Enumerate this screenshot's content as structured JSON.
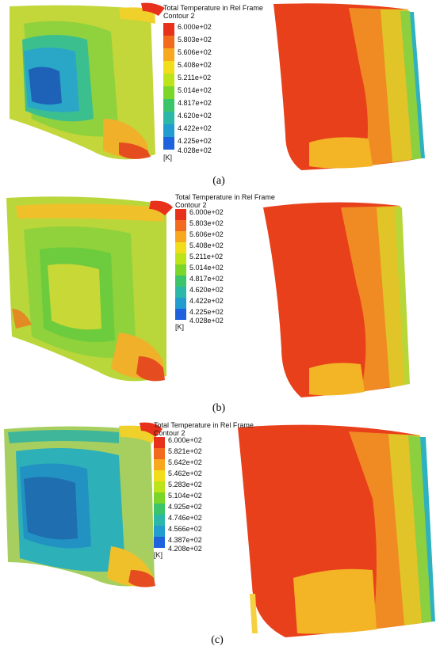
{
  "panels": [
    {
      "caption": "(a)",
      "legend_title": "Total Temperature in Rel Frame",
      "legend_subtitle": "Contour 2",
      "unit": "[K]",
      "levels": [
        "6.000e+02",
        "5.803e+02",
        "5.606e+02",
        "5.408e+02",
        "5.211e+02",
        "5.014e+02",
        "4.817e+02",
        "4.620e+02",
        "4.422e+02",
        "4.225e+02",
        "4.028e+02"
      ]
    },
    {
      "caption": "(b)",
      "legend_title": "Total Temperature in Rel Frame",
      "legend_subtitle": "Contour 2",
      "unit": "[K]",
      "levels": [
        "6.000e+02",
        "5.803e+02",
        "5.606e+02",
        "5.408e+02",
        "5.211e+02",
        "5.014e+02",
        "4.817e+02",
        "4.620e+02",
        "4.422e+02",
        "4.225e+02",
        "4.028e+02"
      ]
    },
    {
      "caption": "(c)",
      "legend_title": "Total Temperature in Rel Frame",
      "legend_subtitle": "Contour 2",
      "unit": "[K]",
      "levels": [
        "6.000e+02",
        "5.821e+02",
        "5.642e+02",
        "5.462e+02",
        "5.283e+02",
        "5.104e+02",
        "4.925e+02",
        "4.746e+02",
        "4.566e+02",
        "4.387e+02",
        "4.208e+02"
      ]
    }
  ],
  "colormap": [
    "#e8311b",
    "#f26a1d",
    "#f7a81e",
    "#f2dd1c",
    "#bde31b",
    "#7cd62a",
    "#3cc46a",
    "#2cb8a8",
    "#239cd0",
    "#1f62de",
    "#1a2ed6"
  ]
}
